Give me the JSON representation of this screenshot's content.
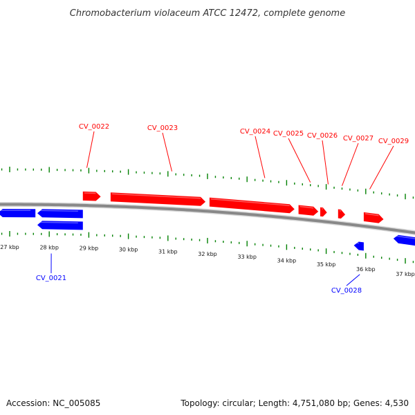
{
  "title": "Chromobacterium violaceum ATCC 12472, complete genome",
  "footer": {
    "accession": "Accession: NC_005085",
    "summary": "Topology: circular; Length: 4,751,080 bp; Genes: 4,530"
  },
  "colors": {
    "forward": "#ff0000",
    "reverse": "#0000ff",
    "tick": "#008000",
    "backbone": "#888888",
    "text": "#111111"
  },
  "axis": {
    "labels": [
      "27 kbp",
      "28 kbp",
      "29 kbp",
      "30 kbp",
      "31 kbp",
      "32 kbp",
      "33 kbp",
      "34 kbp",
      "35 kbp",
      "36 kbp",
      "37 kbp"
    ],
    "start_kbp": 27,
    "end_kbp": 37
  },
  "genes": {
    "forward": [
      {
        "start_kbp": 28.85,
        "end_kbp": 29.3
      },
      {
        "start_kbp": 29.55,
        "end_kbp": 31.95
      },
      {
        "start_kbp": 32.05,
        "end_kbp": 34.2
      },
      {
        "start_kbp": 34.3,
        "end_kbp": 34.8
      },
      {
        "start_kbp": 34.85,
        "end_kbp": 35.02
      },
      {
        "start_kbp": 35.3,
        "end_kbp": 35.48
      },
      {
        "start_kbp": 35.95,
        "end_kbp": 36.45
      }
    ],
    "reverse_outer": [
      {
        "start_kbp": 26.7,
        "end_kbp": 27.65
      },
      {
        "start_kbp": 27.7,
        "end_kbp": 28.85
      },
      {
        "start_kbp": 36.7,
        "end_kbp": 37.55
      }
    ],
    "reverse_inner": [
      {
        "start_kbp": 27.7,
        "end_kbp": 28.85
      },
      {
        "start_kbp": 35.7,
        "end_kbp": 35.95
      }
    ]
  },
  "annotations": {
    "forward": [
      {
        "label": "CV_0022",
        "kbp": 28.95
      },
      {
        "label": "CV_0023",
        "kbp": 31.1
      },
      {
        "label": "CV_0024",
        "kbp": 33.45
      },
      {
        "label": "CV_0025",
        "kbp": 34.6
      },
      {
        "label": "CV_0026",
        "kbp": 35.05
      },
      {
        "label": "CV_0027",
        "kbp": 35.4
      },
      {
        "label": "CV_0029",
        "kbp": 36.1
      }
    ],
    "reverse": [
      {
        "label": "CV_0021",
        "kbp": 28.05
      },
      {
        "label": "CV_0028",
        "kbp": 35.85
      }
    ]
  }
}
